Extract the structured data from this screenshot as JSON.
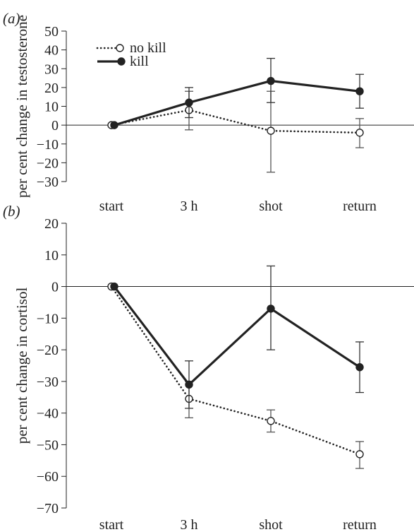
{
  "chart_data": [
    {
      "panel": "(a)",
      "type": "line",
      "categories": [
        "start",
        "3 h",
        "shot",
        "return"
      ],
      "ylabel": "per cent change in testosterone",
      "ylim": [
        -30,
        50
      ],
      "yticks": [
        50,
        40,
        30,
        20,
        10,
        0,
        -10,
        -20,
        -30
      ],
      "series": [
        {
          "name": "no kill",
          "style": "dotted",
          "marker": "open-circle",
          "values": [
            0,
            8,
            -3,
            -4
          ],
          "error_low": [
            0,
            -2.5,
            -25,
            -12
          ],
          "error_high": [
            0,
            18,
            18,
            3.5
          ]
        },
        {
          "name": "kill",
          "style": "solid",
          "marker": "filled-circle",
          "values": [
            0,
            12,
            23.5,
            18
          ],
          "error_low": [
            0,
            4,
            12,
            9
          ],
          "error_high": [
            0,
            20,
            35.5,
            27
          ]
        }
      ]
    },
    {
      "panel": "(b)",
      "type": "line",
      "categories": [
        "start",
        "3 h",
        "shot",
        "return"
      ],
      "ylabel": "per cent change in cortisol",
      "ylim": [
        -70,
        20
      ],
      "yticks": [
        20,
        10,
        0,
        -10,
        -20,
        -30,
        -40,
        -50,
        -60,
        -70
      ],
      "series": [
        {
          "name": "no kill",
          "style": "dotted",
          "marker": "open-circle",
          "values": [
            0,
            -35.5,
            -42.5,
            -53
          ],
          "error_low": [
            0,
            -41.5,
            -46,
            -57.5
          ],
          "error_high": [
            0,
            -30,
            -39,
            -49
          ]
        },
        {
          "name": "kill",
          "style": "solid",
          "marker": "filled-circle",
          "values": [
            0,
            -31,
            -7,
            -25.5
          ],
          "error_low": [
            0,
            -38.5,
            -20,
            -33.5
          ],
          "error_high": [
            0,
            -23.5,
            6.5,
            -17.5
          ]
        }
      ]
    }
  ],
  "legend": {
    "entries": [
      "no kill",
      "kill"
    ]
  }
}
